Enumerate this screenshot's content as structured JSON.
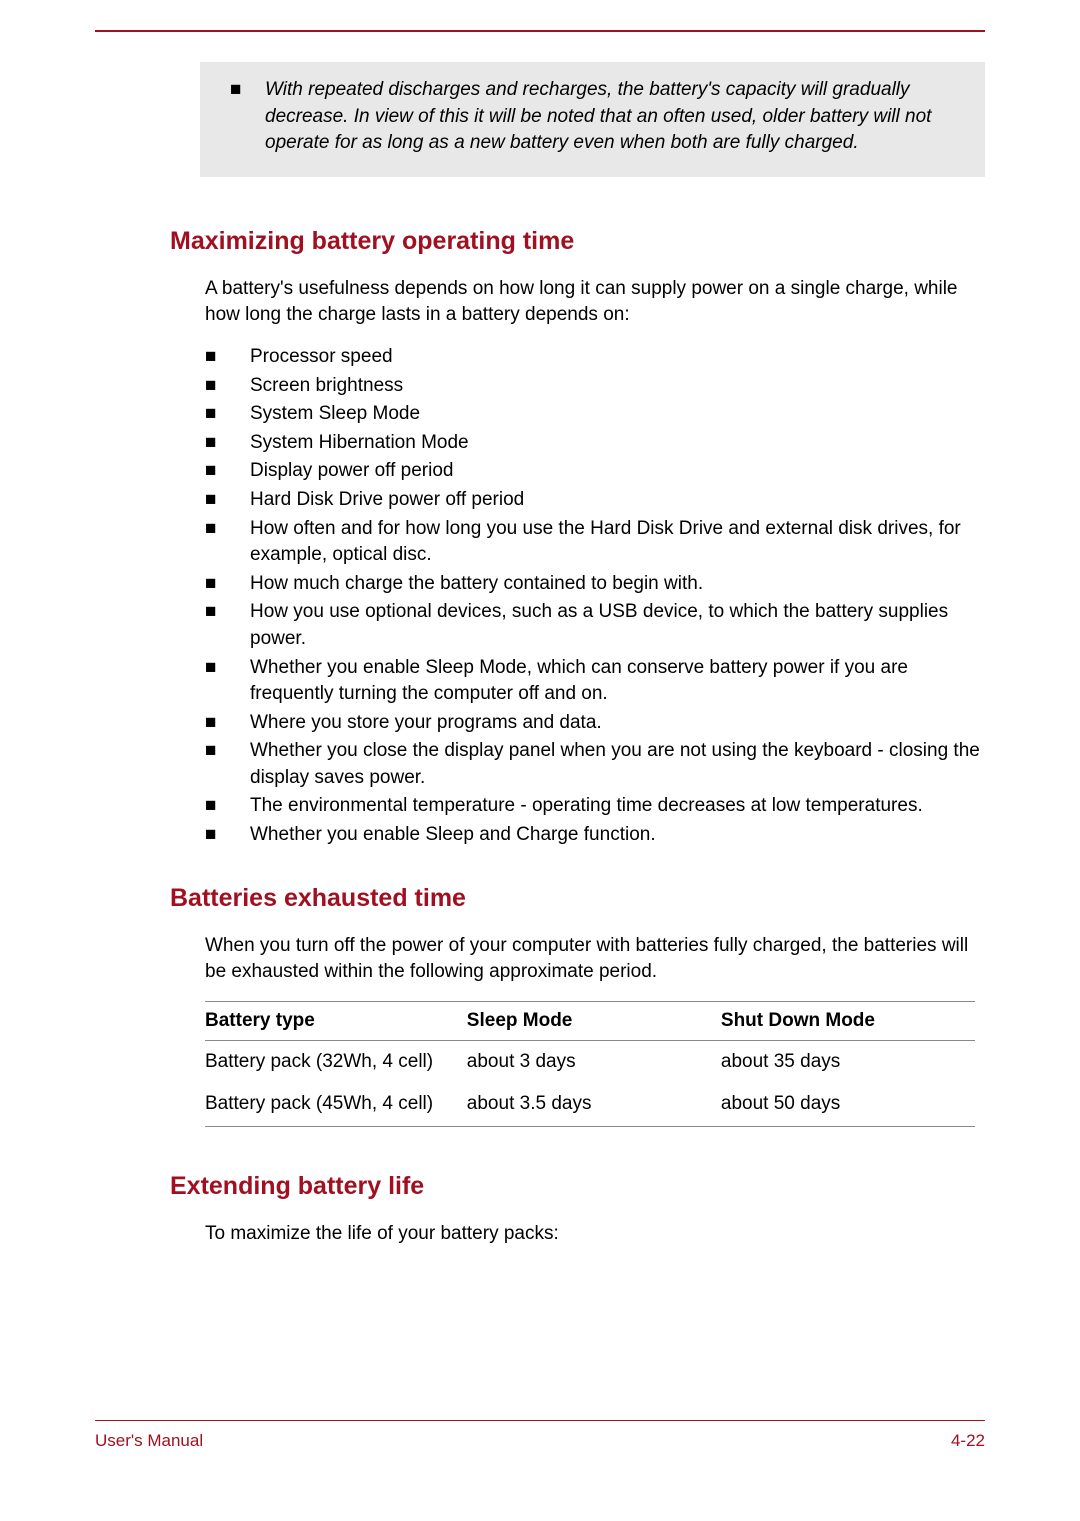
{
  "colors": {
    "accent": "#a01020",
    "note_bg": "#e8e8e8",
    "text": "#000000",
    "rule": "#888888"
  },
  "note": {
    "bullet": "■",
    "text": "With repeated discharges and recharges, the battery's capacity will gradually decrease. In view of this it will be noted that an often used, older battery will not operate for as long as a new battery even when both are fully charged."
  },
  "section1": {
    "heading": "Maximizing battery operating time",
    "intro": "A battery's usefulness depends on how long it can supply power on a single charge, while how long the charge lasts in a battery depends on:",
    "bullets": [
      "Processor speed",
      "Screen brightness",
      "System Sleep Mode",
      "System Hibernation Mode",
      "Display power off period",
      "Hard Disk Drive power off period",
      "How often and for how long you use the Hard Disk Drive and external disk drives, for example, optical disc.",
      "How much charge the battery contained to begin with.",
      "How you use optional devices, such as a USB device, to which the battery supplies power.",
      "Whether you enable Sleep Mode, which can conserve battery power if you are frequently turning the computer off and on.",
      "Where you store your programs and data.",
      "Whether you close the display panel when you are not using the keyboard - closing the display saves power.",
      "The environmental temperature - operating time decreases at low temperatures.",
      "Whether you enable Sleep and Charge function."
    ]
  },
  "section2": {
    "heading": "Batteries exhausted time",
    "intro": "When you turn off the power of your computer with batteries fully charged, the batteries will be exhausted within the following approximate period.",
    "table": {
      "headers": [
        "Battery type",
        "Sleep Mode",
        "Shut Down Mode"
      ],
      "rows": [
        [
          "Battery pack (32Wh, 4 cell)",
          "about 3 days",
          "about 35 days"
        ],
        [
          "Battery pack (45Wh, 4 cell)",
          "about 3.5 days",
          "about 50 days"
        ]
      ]
    }
  },
  "section3": {
    "heading": "Extending battery life",
    "intro": "To maximize the life of your battery packs:"
  },
  "footer": {
    "left": "User's Manual",
    "right": "4-22"
  },
  "bullet_char": "■"
}
